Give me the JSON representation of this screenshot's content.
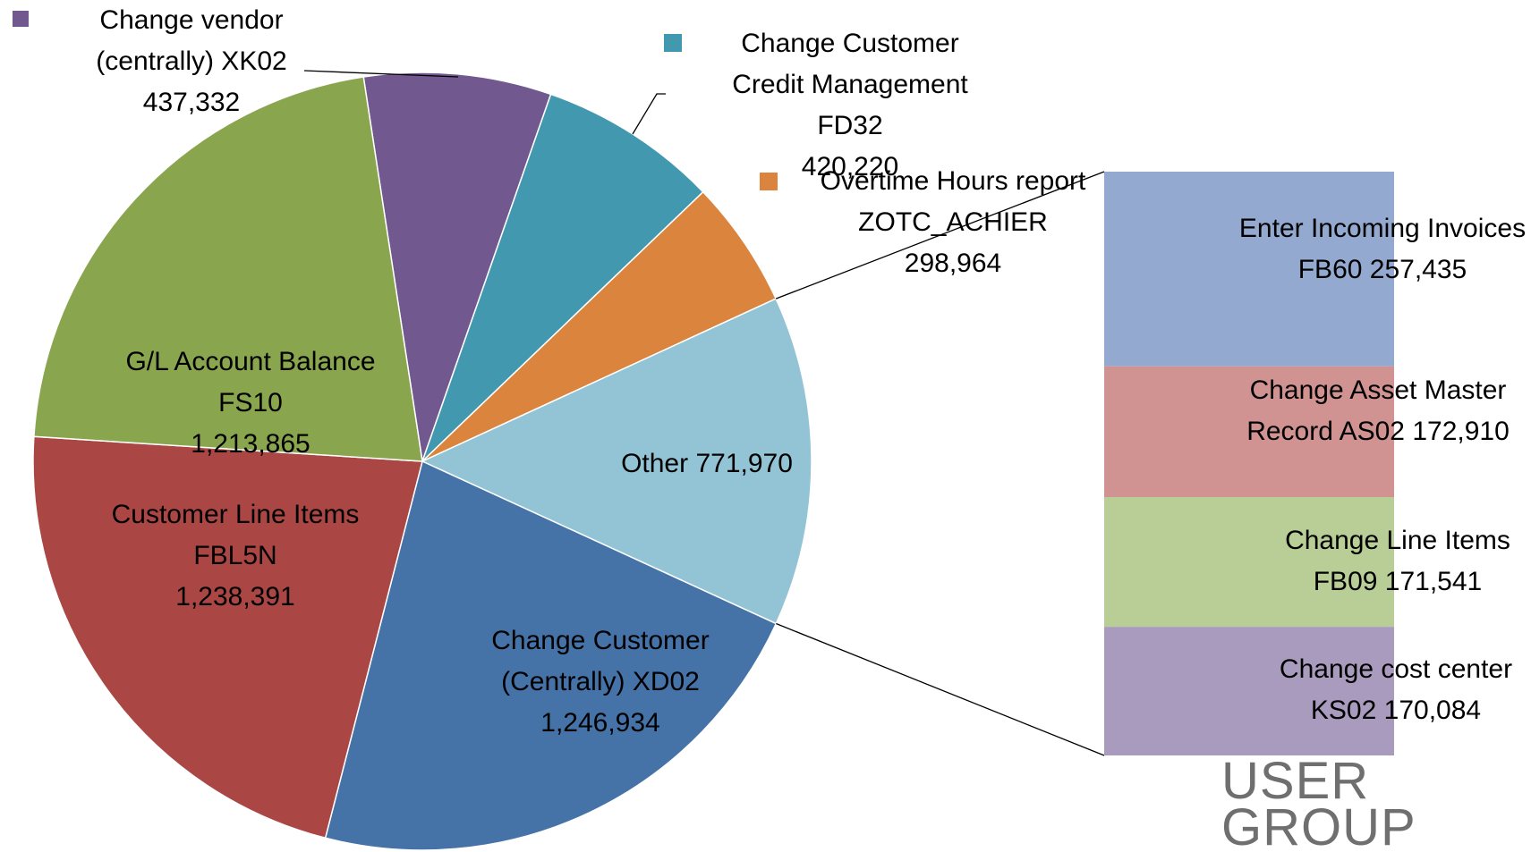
{
  "chart_data": {
    "type": "pie-of-bar",
    "categories": [
      "Change vendor (centrally) XK02",
      "Change Customer Credit Management FD32",
      "Overtime Hours report ZOTC_ACHIER",
      "Other",
      "Change Customer (Centrally) XD02",
      "Customer Line Items FBL5N",
      "G/L Account Balance FS10"
    ],
    "values": [
      437332,
      420220,
      298964,
      771970,
      1246934,
      1238391,
      1213865
    ],
    "value_labels": [
      "437,332",
      "420,220",
      "298,964",
      "771,970",
      "1,246,934",
      "1,238,391",
      "1,213,865"
    ],
    "colors": [
      "#71588f",
      "#4198af",
      "#db843d",
      "#93c4d5",
      "#4572a7",
      "#aa4643",
      "#89a54e"
    ],
    "bar": {
      "categories": [
        "Enter Incoming Invoices FB60",
        "Change Asset Master Record AS02",
        "Change Line Items FB09",
        "Change cost center KS02"
      ],
      "values": [
        257435,
        172910,
        171541,
        170084
      ],
      "value_labels": [
        "257,435",
        "172,910",
        "171,541",
        "170,084"
      ],
      "colors": [
        "#93a9cf",
        "#d19392",
        "#b9cd96",
        "#a99bbd"
      ]
    }
  },
  "logo": {
    "line1": "USER",
    "line2": "GROUP"
  }
}
